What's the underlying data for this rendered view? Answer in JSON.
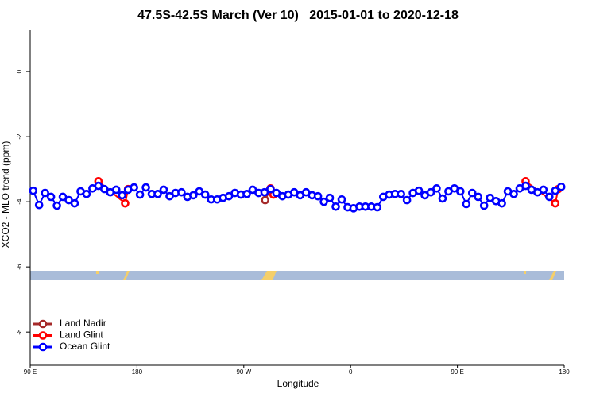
{
  "chart_data": {
    "type": "line",
    "title": "47.5S-42.5S March (Ver 10)   2015-01-01 to 2020-12-18",
    "x_label": "Longitude",
    "y_label": "XCO2 - MLO trend (ppm)",
    "xlim": [
      90,
      540
    ],
    "xticks": [
      {
        "value": 90,
        "label": "90 E"
      },
      180,
      {
        "value": 270,
        "label": "90 W"
      },
      {
        "value": 360,
        "label": "0"
      },
      {
        "value": 450,
        "label": "90 E"
      },
      {
        "value": 540,
        "label": "180"
      }
    ],
    "ylim": [
      -9.02,
      1.27
    ],
    "yticks": [
      0,
      -2,
      -4,
      -6,
      -8
    ],
    "grid": false,
    "legend": "bottom-left",
    "series": [
      {
        "name": "Land Nadir",
        "color": "#a52a2a",
        "x": [
          288,
          292.5
        ],
        "values": [
          -3.95,
          -3.61
        ]
      },
      {
        "name": "Land Glint",
        "color": "#ff0000",
        "x": [
          147.5,
          170,
          172.5,
          null,
          292.5,
          295,
          null,
          507.5,
          532.5,
          535
        ],
        "values": [
          -3.37,
          -4.05,
          -3.61,
          null,
          -3.59,
          -3.78,
          null,
          -3.37,
          -4.05,
          -3.61
        ]
      },
      {
        "name": "Ocean Glint",
        "color": "#0000ff",
        "x": [
          92.5,
          97.5,
          102.5,
          107.5,
          112.5,
          117.5,
          122.5,
          127.5,
          132.5,
          137.5,
          142.5,
          147.5,
          152.5,
          157.5,
          162.5,
          167.5,
          172.5,
          177.5,
          182.5,
          187.5,
          192.5,
          197.5,
          202.5,
          207.5,
          212.5,
          217.5,
          222.5,
          227.5,
          232.5,
          237.5,
          242.5,
          247.5,
          252.5,
          257.5,
          262.5,
          267.5,
          272.5,
          277.5,
          282.5,
          287.5,
          292.5,
          297.5,
          302.5,
          307.5,
          312.5,
          317.5,
          322.5,
          327.5,
          332.5,
          337.5,
          342.5,
          347.5,
          352.5,
          357.5,
          362.5,
          367.5,
          372.5,
          377.5,
          382.5,
          387.5,
          392.5,
          397.5,
          402.5,
          407.5,
          412.5,
          417.5,
          422.5,
          427.5,
          432.5,
          437.5,
          442.5,
          447.5,
          452.5,
          457.5,
          462.5,
          467.5,
          472.5,
          477.5,
          482.5,
          487.5,
          492.5,
          497.5,
          502.5,
          507.5,
          512.5,
          517.5,
          522.5,
          527.5,
          532.5,
          537.5
        ],
        "values": [
          -3.66,
          -4.1,
          -3.73,
          -3.85,
          -4.12,
          -3.85,
          -3.95,
          -4.05,
          -3.68,
          -3.76,
          -3.59,
          -3.51,
          -3.61,
          -3.71,
          -3.63,
          -3.8,
          -3.63,
          -3.56,
          -3.78,
          -3.56,
          -3.76,
          -3.76,
          -3.63,
          -3.83,
          -3.73,
          -3.71,
          -3.85,
          -3.8,
          -3.68,
          -3.78,
          -3.93,
          -3.93,
          -3.88,
          -3.83,
          -3.73,
          -3.78,
          -3.76,
          -3.63,
          -3.73,
          -3.71,
          -3.61,
          -3.73,
          -3.83,
          -3.78,
          -3.71,
          -3.8,
          -3.71,
          -3.8,
          -3.83,
          -4.0,
          -3.88,
          -4.15,
          -3.93,
          -4.17,
          -4.2,
          -4.15,
          -4.15,
          -4.15,
          -4.17,
          -3.85,
          -3.78,
          -3.76,
          -3.76,
          -3.95,
          -3.73,
          -3.66,
          -3.8,
          -3.71,
          -3.59,
          -3.9,
          -3.68,
          -3.59,
          -3.68,
          -4.07,
          -3.73,
          -3.85,
          -4.12,
          -3.88,
          -3.98,
          -4.05,
          -3.68,
          -3.76,
          -3.59,
          -3.51,
          -3.63,
          -3.71,
          -3.63,
          -3.85,
          -3.66,
          -3.54
        ]
      }
    ]
  }
}
